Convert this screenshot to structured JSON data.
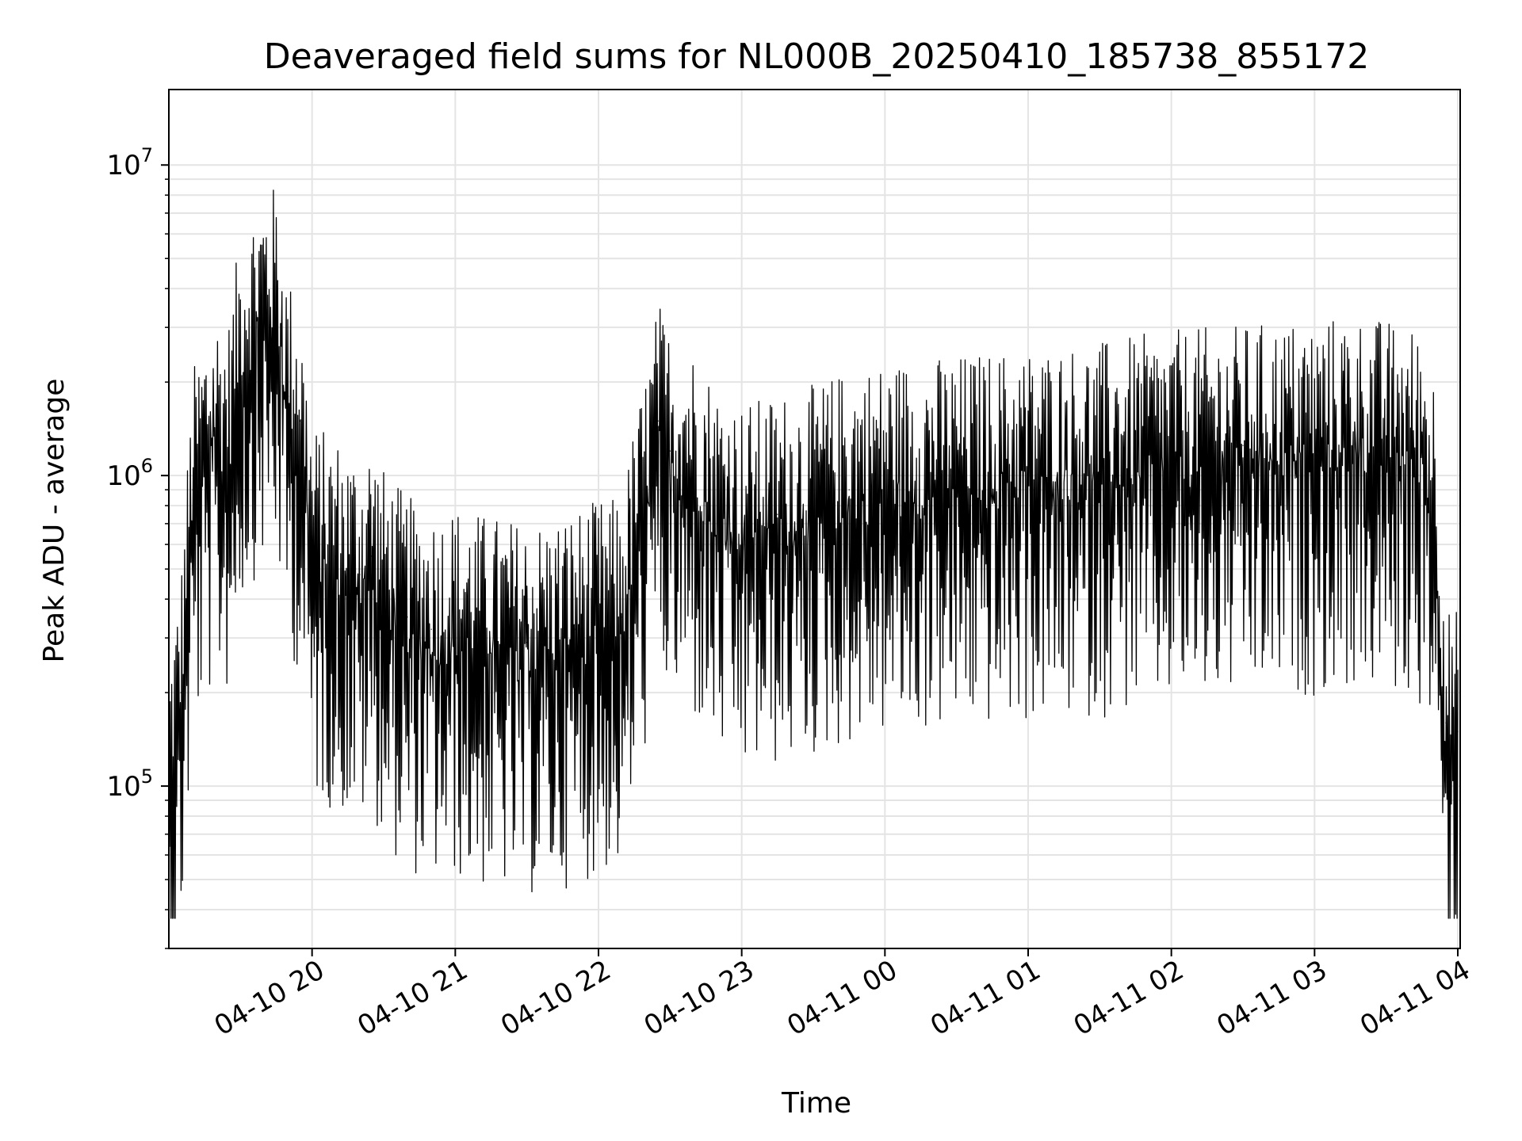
{
  "chart_data": {
    "type": "line",
    "title": "Deaveraged field sums for NL000B_20250410_185738_855172",
    "xlabel": "Time",
    "ylabel": "Peak ADU - average",
    "yscale": "log",
    "ylim": [
      30000,
      17500000
    ],
    "xlim": [
      "2025-04-10 19:00",
      "2025-04-11 04:01"
    ],
    "grid": true,
    "x_ticks": [
      {
        "label": "04-10 20",
        "time": "2025-04-10 20:00"
      },
      {
        "label": "04-10 21",
        "time": "2025-04-10 21:00"
      },
      {
        "label": "04-10 22",
        "time": "2025-04-10 22:00"
      },
      {
        "label": "04-10 23",
        "time": "2025-04-10 23:00"
      },
      {
        "label": "04-11 00",
        "time": "2025-04-11 00:00"
      },
      {
        "label": "04-11 01",
        "time": "2025-04-11 01:00"
      },
      {
        "label": "04-11 02",
        "time": "2025-04-11 02:00"
      },
      {
        "label": "04-11 03",
        "time": "2025-04-11 03:00"
      },
      {
        "label": "04-11 04",
        "time": "2025-04-11 04:00"
      }
    ],
    "y_ticks": [
      {
        "base": "10",
        "exp": "5",
        "value": 100000
      },
      {
        "base": "10",
        "exp": "6",
        "value": 1000000
      },
      {
        "base": "10",
        "exp": "7",
        "value": 10000000
      }
    ],
    "series": [
      {
        "color": "#000000",
        "x": [
          "2025-04-10 19:00",
          "2025-04-10 19:05",
          "2025-04-10 19:10",
          "2025-04-10 19:15",
          "2025-04-10 19:20",
          "2025-04-10 19:25",
          "2025-04-10 19:30",
          "2025-04-10 19:35",
          "2025-04-10 19:40",
          "2025-04-10 19:45",
          "2025-04-10 19:50",
          "2025-04-10 19:55",
          "2025-04-10 20:00",
          "2025-04-10 20:10",
          "2025-04-10 20:20",
          "2025-04-10 20:25",
          "2025-04-10 20:30",
          "2025-04-10 20:40",
          "2025-04-10 20:50",
          "2025-04-10 21:00",
          "2025-04-10 21:10",
          "2025-04-10 21:20",
          "2025-04-10 21:30",
          "2025-04-10 21:40",
          "2025-04-10 21:50",
          "2025-04-10 22:00",
          "2025-04-10 22:10",
          "2025-04-10 22:15",
          "2025-04-10 22:20",
          "2025-04-10 22:25",
          "2025-04-10 22:30",
          "2025-04-10 22:40",
          "2025-04-10 22:50",
          "2025-04-10 23:00",
          "2025-04-10 23:15",
          "2025-04-10 23:30",
          "2025-04-10 23:45",
          "2025-04-11 00:00",
          "2025-04-11 00:30",
          "2025-04-11 01:00",
          "2025-04-11 01:30",
          "2025-04-11 02:00",
          "2025-04-11 02:30",
          "2025-04-11 03:00",
          "2025-04-11 03:15",
          "2025-04-11 03:30",
          "2025-04-11 03:45",
          "2025-04-11 03:50",
          "2025-04-11 03:55",
          "2025-04-11 04:00"
        ],
        "y": [
          110000,
          200000,
          900000,
          1200000,
          1400000,
          1300000,
          2500000,
          3000000,
          3500000,
          3500000,
          1800000,
          1500000,
          600000,
          550000,
          480000,
          550000,
          430000,
          350000,
          320000,
          330000,
          310000,
          300000,
          290000,
          300000,
          320000,
          340000,
          350000,
          600000,
          900000,
          1500000,
          1200000,
          1050000,
          800000,
          700000,
          750000,
          800000,
          900000,
          950000,
          1000000,
          1050000,
          1100000,
          1200000,
          1250000,
          1300000,
          1350000,
          1300000,
          1200000,
          900000,
          160000,
          150000
        ]
      }
    ]
  }
}
